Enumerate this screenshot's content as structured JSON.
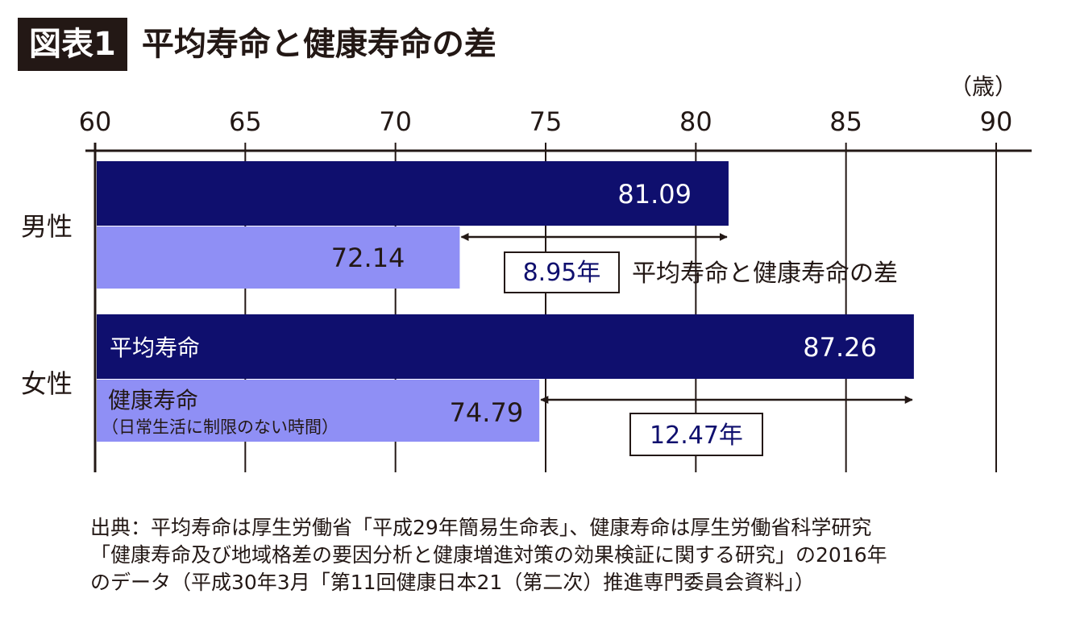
{
  "header": {
    "figure_label": "図表1",
    "title": "平均寿命と健康寿命の差"
  },
  "colors": {
    "average_life": "#0f0f6e",
    "healthy_life": "#8f8ff5",
    "text_dark": "#231815",
    "value_navy": "#0f0f6e",
    "grid": "#231815"
  },
  "chart_data": {
    "type": "bar",
    "orientation": "horizontal",
    "unit_label": "（歳）",
    "xlim": [
      60,
      90
    ],
    "xticks": [
      60,
      65,
      70,
      75,
      80,
      85,
      90
    ],
    "categories": [
      "男性",
      "女性"
    ],
    "series": [
      {
        "name": "平均寿命",
        "values": [
          81.09,
          87.26
        ],
        "value_labels": [
          "81.09",
          "87.26"
        ]
      },
      {
        "name": "健康寿命",
        "sub_name": "（日常生活に制限のない時間）",
        "values": [
          72.14,
          74.79
        ],
        "value_labels": [
          "72.14",
          "74.79"
        ]
      }
    ],
    "annotations": {
      "gap_labels": [
        "8.95年",
        "12.47年"
      ],
      "gap_caption": "平均寿命と健康寿命の差"
    }
  },
  "source": [
    "出典：平均寿命は厚生労働省「平成29年簡易生命表」、健康寿命は厚生労働省科学研究",
    "「健康寿命及び地域格差の要因分析と健康増進対策の効果検証に関する研究」の2016年",
    "のデータ（平成30年3月「第11回健康日本21（第二次）推進専門委員会資料」）"
  ]
}
